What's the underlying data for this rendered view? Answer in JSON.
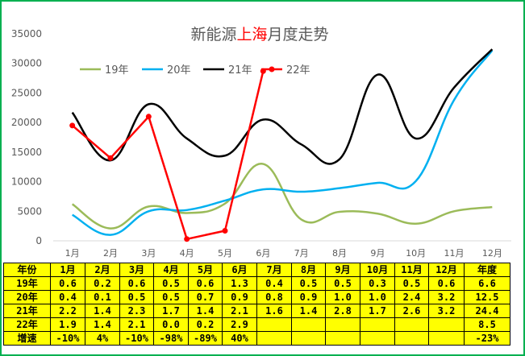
{
  "chart_data": {
    "type": "line",
    "title_parts": [
      "新能源",
      "上海",
      "月度走势"
    ],
    "title_highlight_color": "#ff0000",
    "categories": [
      "1月",
      "2月",
      "3月",
      "4月",
      "5月",
      "6月",
      "7月",
      "8月",
      "9月",
      "10月",
      "11月",
      "12月"
    ],
    "ylim": [
      0,
      35000
    ],
    "yticks": [
      0,
      5000,
      10000,
      15000,
      20000,
      25000,
      30000,
      35000
    ],
    "grid": false,
    "legend_position": "top",
    "series": [
      {
        "name": "19年",
        "color": "#9bbb59",
        "smooth": true,
        "markers": false,
        "values": [
          6200,
          2100,
          5800,
          4700,
          6300,
          13000,
          3600,
          4900,
          4600,
          2900,
          5000,
          5700
        ]
      },
      {
        "name": "20年",
        "color": "#00b0f0",
        "smooth": true,
        "markers": false,
        "values": [
          4400,
          1000,
          5000,
          5200,
          6800,
          8700,
          8300,
          8900,
          9800,
          10100,
          23800,
          32200
        ]
      },
      {
        "name": "21年",
        "color": "#000000",
        "smooth": true,
        "markers": false,
        "values": [
          21700,
          13600,
          23100,
          17300,
          14400,
          20500,
          16300,
          13800,
          28100,
          17300,
          25900,
          32400
        ]
      },
      {
        "name": "22年",
        "color": "#ff0000",
        "smooth": false,
        "markers": true,
        "values": [
          19500,
          14000,
          21000,
          300,
          1700,
          28700,
          null,
          null,
          null,
          null,
          null,
          null
        ]
      }
    ]
  },
  "table": {
    "header": [
      "年份",
      "1月",
      "2月",
      "3月",
      "4月",
      "5月",
      "6月",
      "7月",
      "8月",
      "9月",
      "10月",
      "11月",
      "12月",
      "年度"
    ],
    "rows": [
      [
        "19年",
        "0.6",
        "0.2",
        "0.6",
        "0.5",
        "0.6",
        "1.3",
        "0.4",
        "0.5",
        "0.5",
        "0.3",
        "0.5",
        "0.6",
        "6.6"
      ],
      [
        "20年",
        "0.4",
        "0.1",
        "0.5",
        "0.5",
        "0.7",
        "0.9",
        "0.8",
        "0.9",
        "1.0",
        "1.0",
        "2.4",
        "3.2",
        "12.5"
      ],
      [
        "21年",
        "2.2",
        "1.4",
        "2.3",
        "1.7",
        "1.4",
        "2.1",
        "1.6",
        "1.4",
        "2.8",
        "1.7",
        "2.6",
        "3.2",
        "24.4"
      ],
      [
        "22年",
        "1.9",
        "1.4",
        "2.1",
        "0.0",
        "0.2",
        "2.9",
        "",
        "",
        "",
        "",
        "",
        "",
        "8.5"
      ],
      [
        "增速",
        "-10%",
        "4%",
        "-10%",
        "-98%",
        "-89%",
        "40%",
        "",
        "",
        "",
        "",
        "",
        "",
        "-23%"
      ]
    ]
  }
}
